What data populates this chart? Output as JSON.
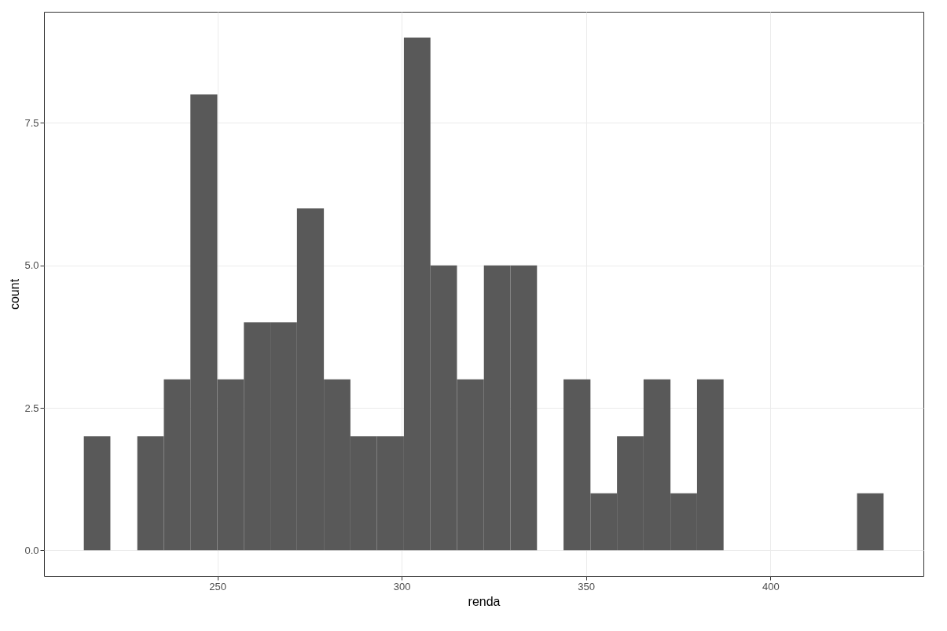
{
  "chart_data": {
    "type": "histogram",
    "xlabel": "renda",
    "ylabel": "count",
    "color": "#595959",
    "bins": [
      213.8,
      221.0,
      228.3,
      235.5,
      242.7,
      250.0,
      257.2,
      264.4,
      271.6,
      278.9,
      286.1,
      293.3,
      300.6,
      307.8,
      315.0,
      322.3,
      329.5,
      336.7,
      343.9,
      351.2,
      358.4,
      365.6,
      372.9,
      380.1,
      387.3,
      394.6,
      401.8,
      409.0,
      416.2,
      423.5,
      430.7
    ],
    "values": [
      2,
      0,
      2,
      3,
      8,
      3,
      4,
      4,
      6,
      3,
      2,
      2,
      9,
      5,
      3,
      5,
      5,
      0,
      3,
      1,
      2,
      3,
      1,
      3,
      0,
      0,
      0,
      0,
      0,
      1
    ],
    "xlim": [
      203.0,
      441.5
    ],
    "ylim": [
      -0.45,
      9.45
    ],
    "xticks": [
      250,
      300,
      350,
      400
    ],
    "yticks": [
      {
        "value": 0,
        "label": "0.0"
      },
      {
        "value": 2.5,
        "label": "2.5"
      },
      {
        "value": 5,
        "label": "5.0"
      },
      {
        "value": 7.5,
        "label": "7.5"
      }
    ],
    "grid": true
  }
}
